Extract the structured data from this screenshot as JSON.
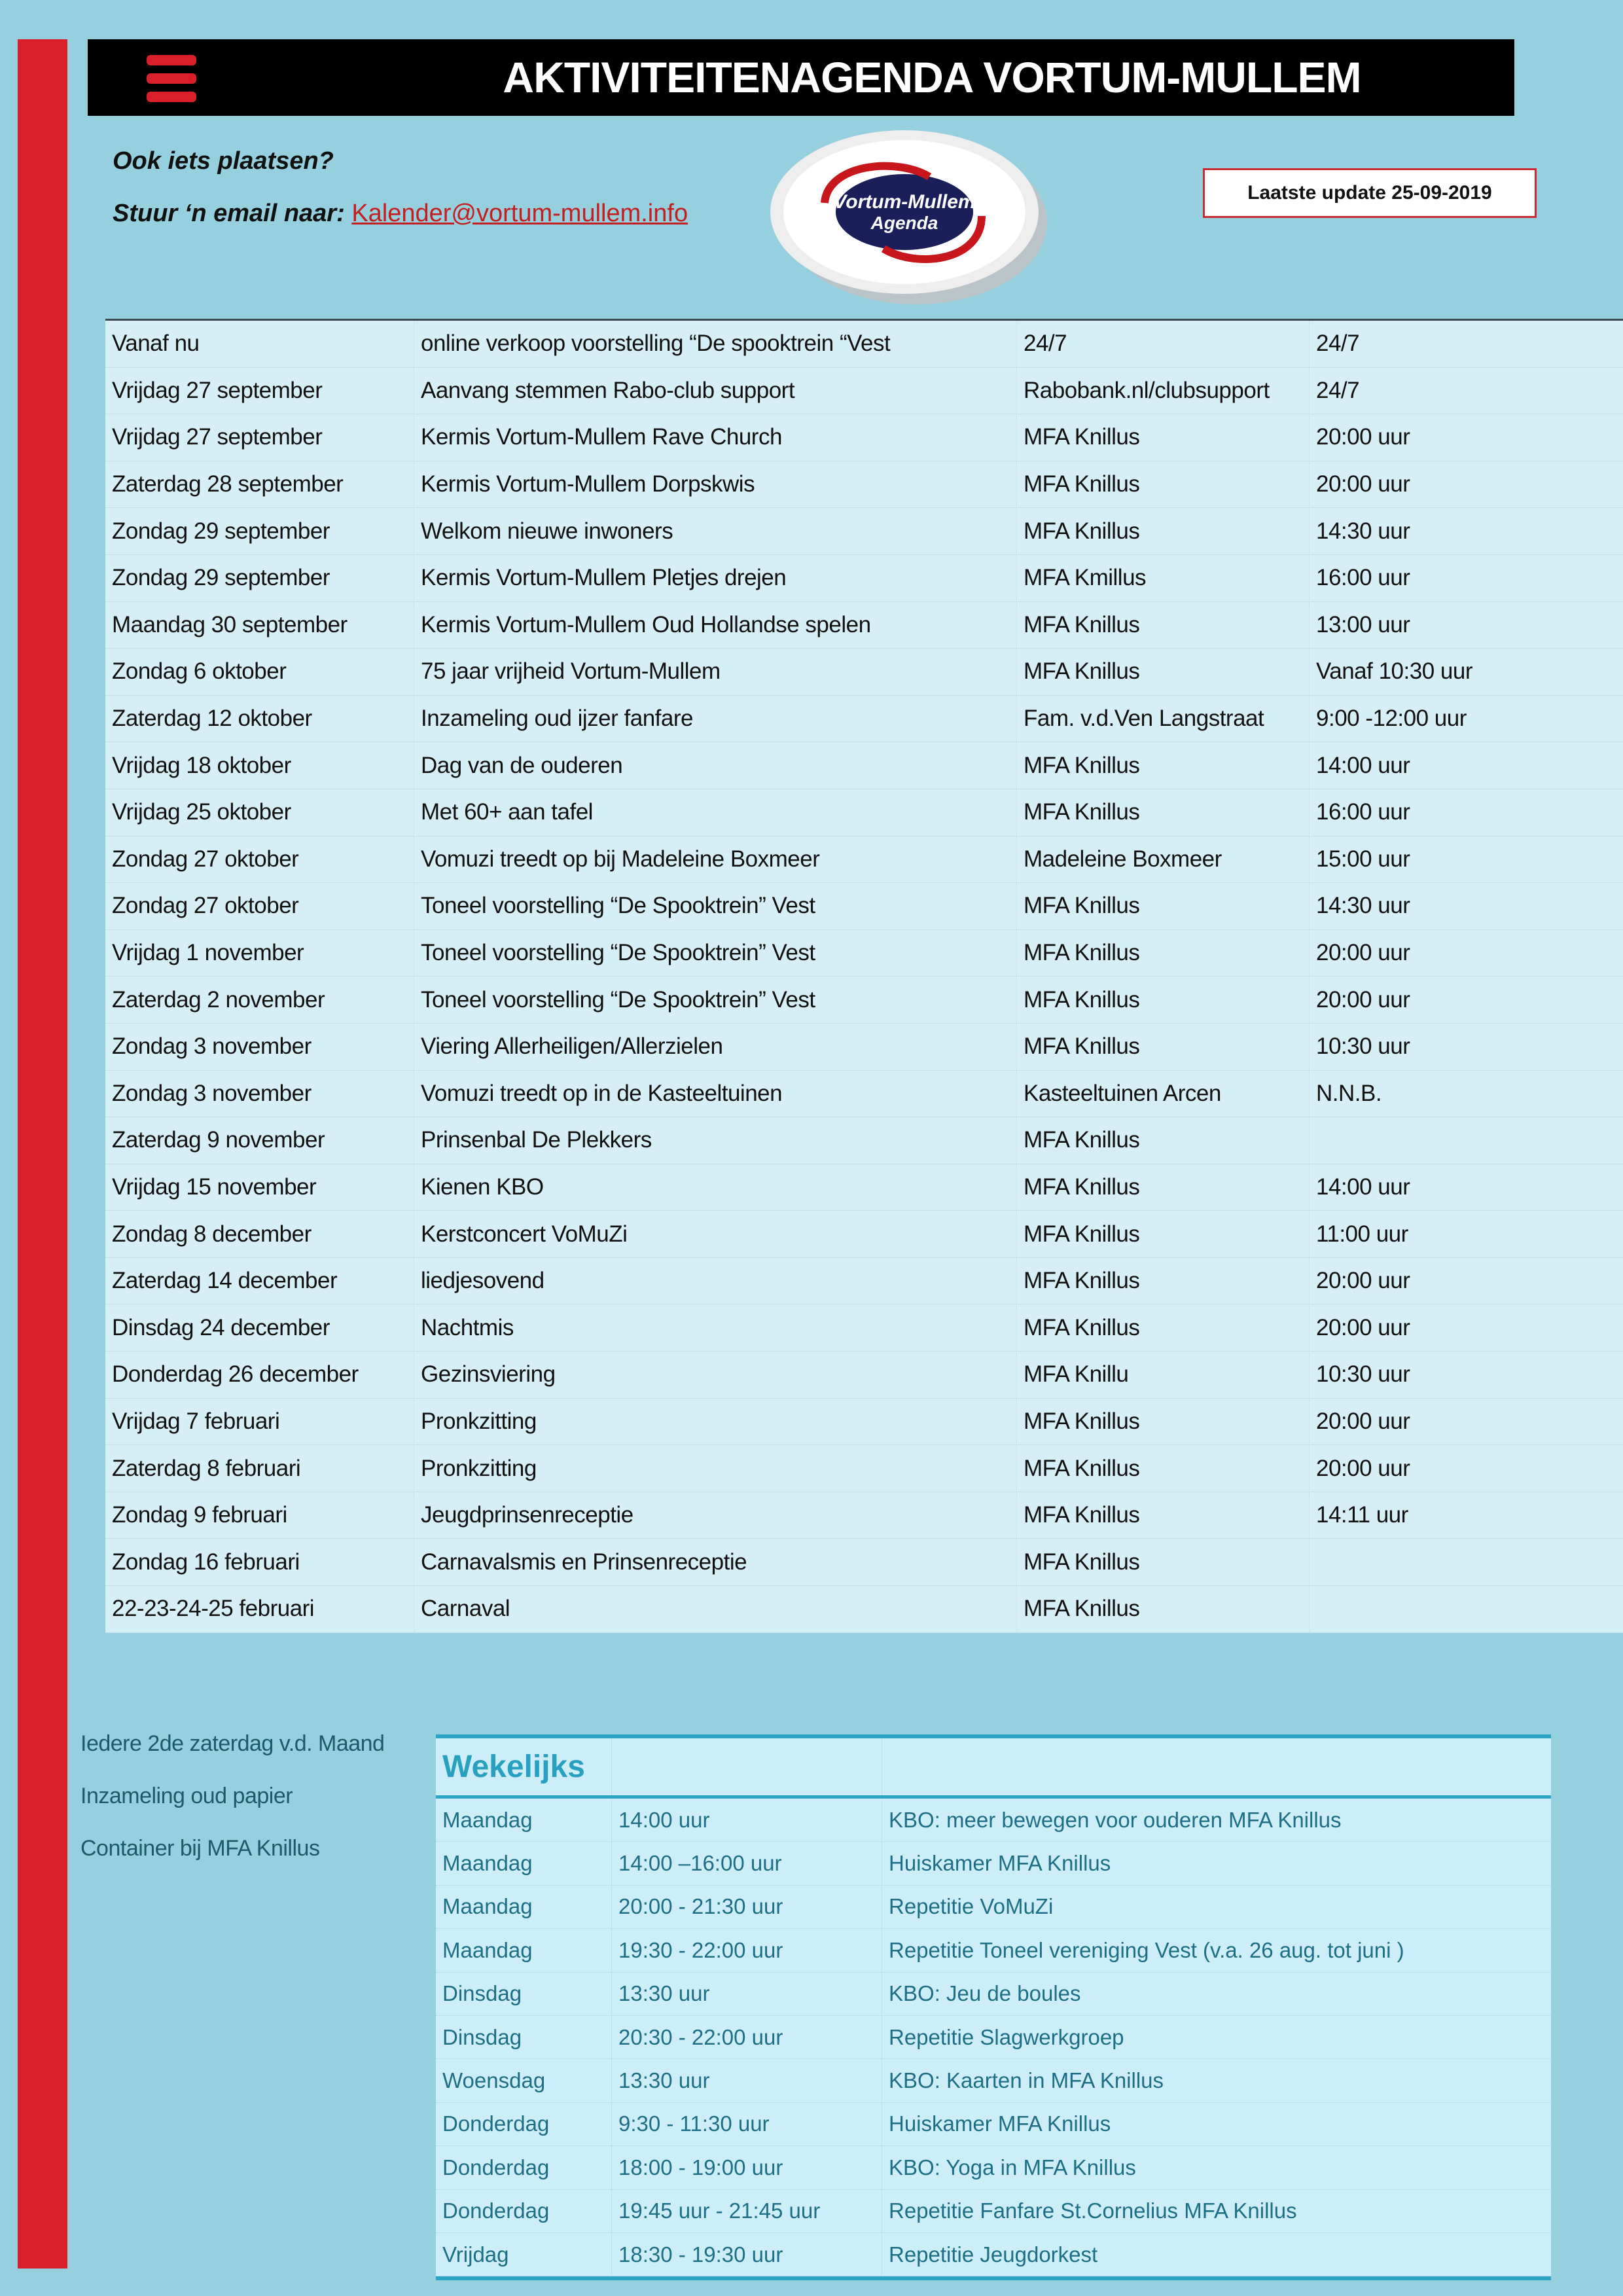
{
  "header": {
    "title": "AKTIVITEITENAGENDA VORTUM-MULLEM",
    "menu_icon": "hamburger-icon"
  },
  "intro": {
    "line1": "Ook iets plaatsen?",
    "line2": "Stuur ‘n email naar: ",
    "email": "Kalender@vortum-mullem.info"
  },
  "logo": {
    "line1": "Vortum-Mullem",
    "line2": "Agenda"
  },
  "update": "Laatste update 25-09-2019",
  "colors": {
    "accent_red": "#d9202a",
    "background": "#96d0de",
    "weekly_accent": "#2ca5c5"
  },
  "agenda": [
    [
      "Vanaf nu",
      "online verkoop voorstelling  “De spooktrein “Vest",
      "24/7",
      "24/7"
    ],
    [
      "Vrijdag 27 september",
      "Aanvang stemmen Rabo-club support",
      "Rabobank.nl/clubsupport",
      "24/7"
    ],
    [
      "Vrijdag 27 september",
      "Kermis Vortum-Mullem Rave Church",
      "MFA Knillus",
      "20:00 uur"
    ],
    [
      "Zaterdag 28 september",
      "Kermis Vortum-Mullem Dorpskwis",
      "MFA Knillus",
      "20:00 uur"
    ],
    [
      "Zondag 29 september",
      "Welkom nieuwe inwoners",
      "MFA Knillus",
      "14:30 uur"
    ],
    [
      "Zondag 29 september",
      "Kermis Vortum-Mullem Pletjes drejen",
      "MFA Kmillus",
      "16:00 uur"
    ],
    [
      "Maandag 30 september",
      "Kermis Vortum-Mullem Oud Hollandse spelen",
      "MFA Knillus",
      "13:00 uur"
    ],
    [
      "Zondag 6 oktober",
      "75 jaar vrijheid Vortum-Mullem",
      "MFA Knillus",
      "Vanaf 10:30 uur"
    ],
    [
      "Zaterdag 12 oktober",
      "Inzameling oud ijzer fanfare",
      "Fam. v.d.Ven Langstraat",
      "9:00 -12:00 uur"
    ],
    [
      "Vrijdag 18 oktober",
      "Dag van de ouderen",
      "MFA Knillus",
      "14:00 uur"
    ],
    [
      "Vrijdag 25 oktober",
      "Met 60+ aan tafel",
      "MFA Knillus",
      "16:00 uur"
    ],
    [
      "Zondag 27 oktober",
      "Vomuzi treedt op bij Madeleine Boxmeer",
      "Madeleine Boxmeer",
      "15:00 uur"
    ],
    [
      "Zondag 27 oktober",
      "Toneel voorstelling “De Spooktrein”  Vest",
      "MFA Knillus",
      "14:30 uur"
    ],
    [
      "Vrijdag 1 november",
      "Toneel voorstelling “De Spooktrein”  Vest",
      "MFA Knillus",
      "20:00 uur"
    ],
    [
      "Zaterdag 2 november",
      "Toneel voorstelling “De Spooktrein”  Vest",
      "MFA Knillus",
      "20:00 uur"
    ],
    [
      "Zondag 3 november",
      "Viering Allerheiligen/Allerzielen",
      "MFA Knillus",
      "10:30 uur"
    ],
    [
      "Zondag 3 november",
      "Vomuzi treedt op in de Kasteeltuinen",
      "Kasteeltuinen Arcen",
      "N.N.B."
    ],
    [
      "Zaterdag  9 november",
      "Prinsenbal De Plekkers",
      "MFA Knillus",
      ""
    ],
    [
      "Vrijdag 15 november",
      "Kienen KBO",
      "MFA Knillus",
      "14:00 uur"
    ],
    [
      "Zondag 8 december",
      "Kerstconcert VoMuZi",
      "MFA Knillus",
      "11:00 uur"
    ],
    [
      "Zaterdag 14 december",
      "liedjesovend",
      "MFA Knillus",
      "20:00 uur"
    ],
    [
      "Dinsdag 24 december",
      "Nachtmis",
      "MFA Knillus",
      "20:00 uur"
    ],
    [
      "Donderdag 26 december",
      "Gezinsviering",
      "MFA Knillu",
      "10:30 uur"
    ],
    [
      "Vrijdag 7 februari",
      "Pronkzitting",
      "MFA Knillus",
      "20:00 uur"
    ],
    [
      "Zaterdag 8 februari",
      "Pronkzitting",
      "MFA Knillus",
      "20:00 uur"
    ],
    [
      "Zondag 9 februari",
      "Jeugdprinsenreceptie",
      "MFA Knillus",
      "14:11 uur"
    ],
    [
      "Zondag 16 februari",
      "Carnavalsmis en Prinsenreceptie",
      "MFA Knillus",
      ""
    ],
    [
      "22-23-24-25 februari",
      "Carnaval",
      "MFA Knillus",
      ""
    ]
  ],
  "notes": [
    "Iedere 2de  zaterdag  v.d. Maand",
    "Inzameling oud papier",
    "Container bij  MFA Knillus"
  ],
  "weekly": {
    "title": "Wekelijks",
    "rows": [
      [
        "Maandag",
        "14:00 uur",
        "KBO: meer bewegen voor ouderen MFA Knillus"
      ],
      [
        "Maandag",
        "14:00 –16:00 uur",
        "Huiskamer MFA Knillus"
      ],
      [
        "Maandag",
        "20:00 -  21:30 uur",
        "Repetitie VoMuZi"
      ],
      [
        "Maandag",
        "19:30  - 22:00 uur",
        "Repetitie Toneel vereniging Vest (v.a. 26 aug. tot juni )"
      ],
      [
        "Dinsdag",
        "13:30 uur",
        "KBO: Jeu de boules"
      ],
      [
        "Dinsdag",
        "20:30  - 22:00 uur",
        "Repetitie Slagwerkgroep"
      ],
      [
        "Woensdag",
        "13:30 uur",
        "KBO: Kaarten in MFA Knillus"
      ],
      [
        "Donderdag",
        "9:30 - 11:30 uur",
        "Huiskamer MFA Knillus"
      ],
      [
        "Donderdag",
        "18:00 -  19:00 uur",
        "KBO: Yoga in MFA Knillus"
      ],
      [
        "Donderdag",
        "19:45 uur -  21:45 uur",
        "Repetitie Fanfare St.Cornelius MFA Knillus"
      ],
      [
        "Vrijdag",
        "18:30 - 19:30 uur",
        "Repetitie Jeugdorkest"
      ]
    ]
  }
}
